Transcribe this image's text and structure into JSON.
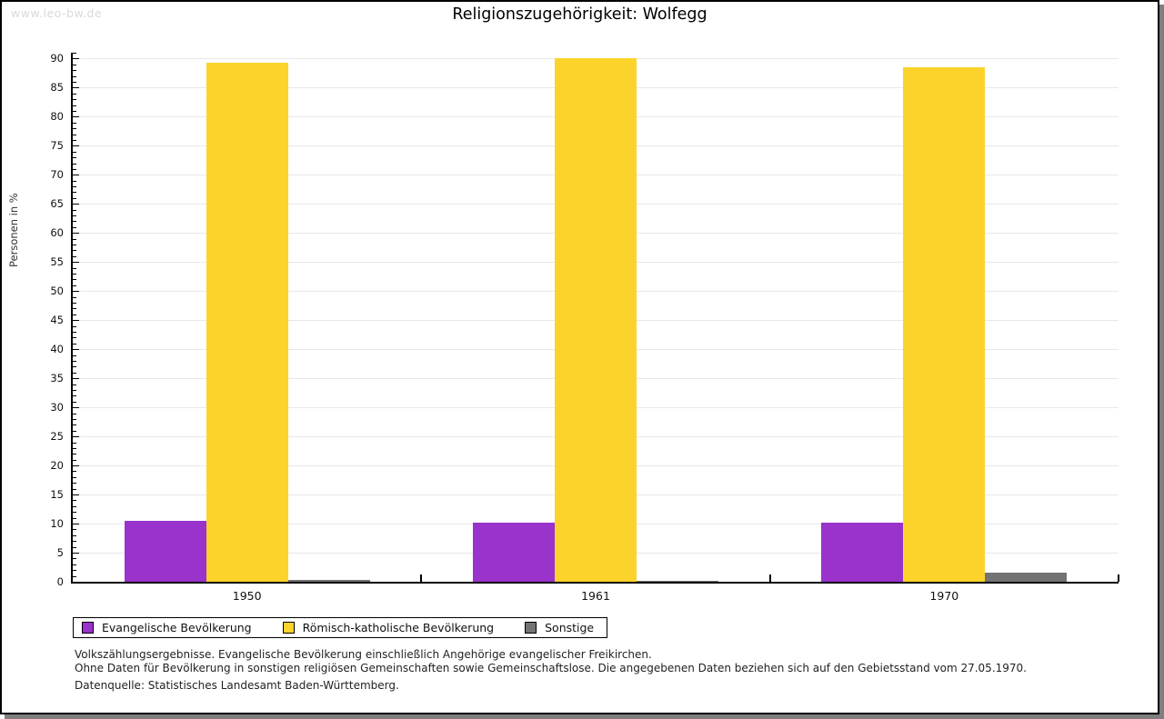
{
  "watermark": "www.leo-bw.de",
  "title": "Religionszugehörigkeit: Wolfegg",
  "chart_data": {
    "type": "bar",
    "title": "Religionszugehörigkeit: Wolfegg",
    "categories": [
      "1950",
      "1961",
      "1970"
    ],
    "series": [
      {
        "name": "Evangelische Bevölkerung",
        "color": "#9933cc",
        "values": [
          10.5,
          10.2,
          10.2
        ]
      },
      {
        "name": "Römisch-katholische Bevölkerung",
        "color": "#fcd32b",
        "values": [
          89.3,
          90.0,
          88.5
        ]
      },
      {
        "name": "Sonstige",
        "color": "#737373",
        "values": [
          0.3,
          0.1,
          1.5
        ]
      }
    ],
    "xlabel": "",
    "ylabel": "Personen in %",
    "ylim": [
      0,
      91
    ],
    "ytick_max": 90,
    "ytick_step": 5,
    "minor_tick_step": 1,
    "grid": true,
    "legend_position": "bottom-left"
  },
  "footnotes": {
    "line1": "Volkszählungsergebnisse. Evangelische Bevölkerung einschließlich Angehörige evangelischer Freikirchen.",
    "line2": "Ohne Daten für Bevölkerung in sonstigen religiösen Gemeinschaften sowie Gemeinschaftslose. Die angegebenen Daten beziehen sich auf den Gebietsstand vom 27.05.1970.",
    "source": "Datenquelle: Statistisches Landesamt Baden-Württemberg."
  }
}
